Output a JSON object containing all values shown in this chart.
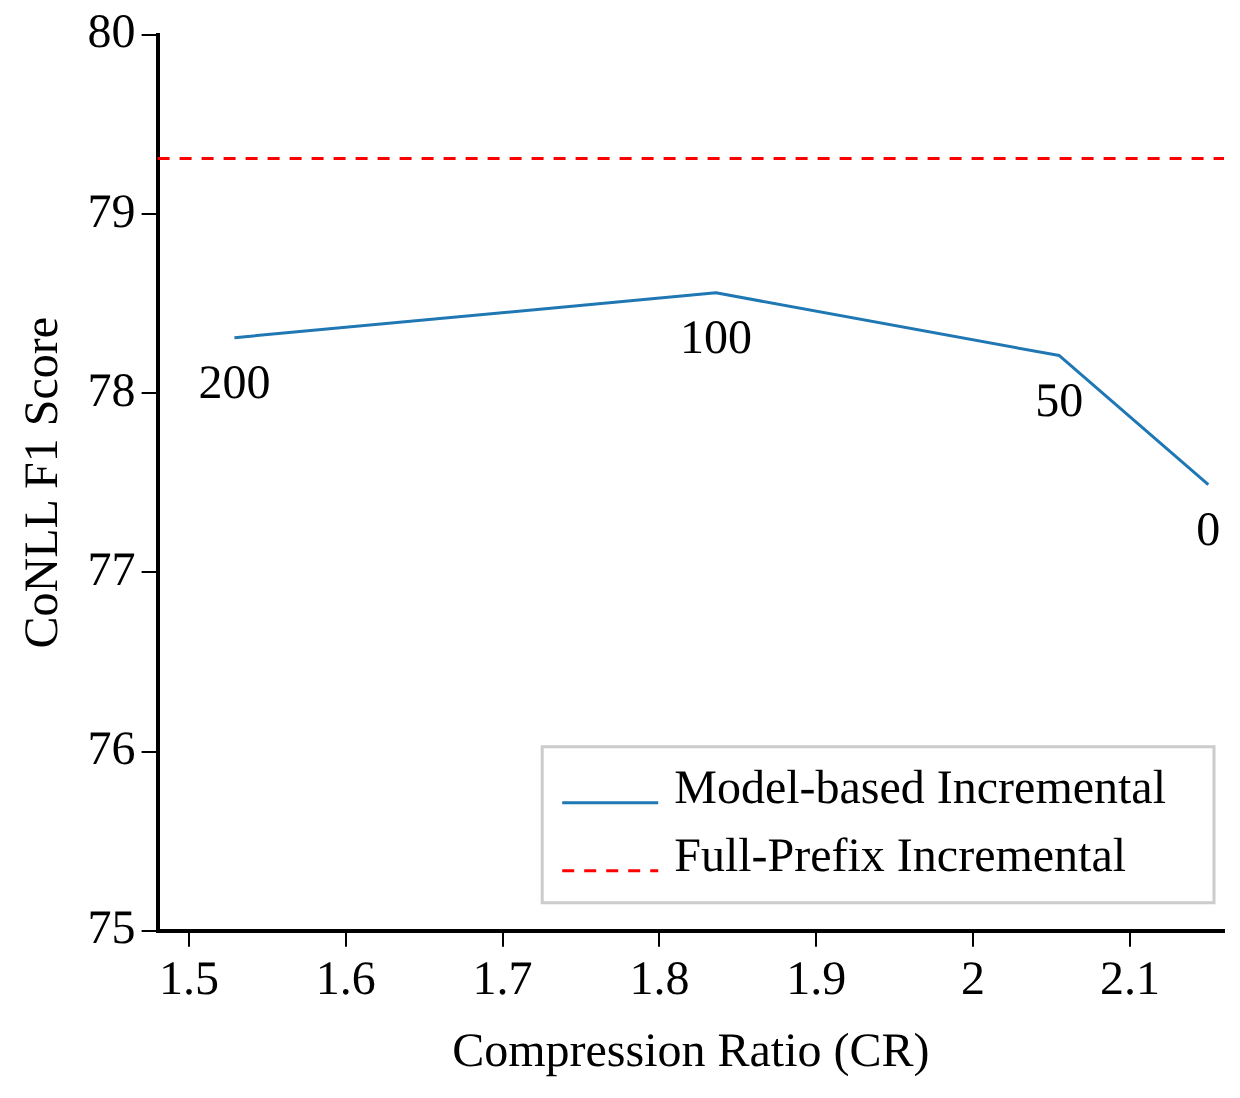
{
  "chart_data": {
    "type": "line",
    "xlabel": "Compression Ratio (CR)",
    "ylabel": "CoNLL F1 Score",
    "x": [
      1.529,
      1.836,
      2.055,
      2.15
    ],
    "series": [
      {
        "name": "Model-based Incremental",
        "color": "#1f77b4",
        "values": [
          78.31,
          78.56,
          78.21,
          77.49
        ]
      }
    ],
    "ref_lines": [
      {
        "axis": "y",
        "value": 79.31,
        "label": "Full-Prefix Incremental",
        "color": "#ff0000",
        "line_style": "dashed"
      }
    ],
    "annotations": [
      {
        "text": "200",
        "x": 1.529,
        "y": 78.31
      },
      {
        "text": "100",
        "x": 1.836,
        "y": 78.56
      },
      {
        "text": "50",
        "x": 2.055,
        "y": 78.21
      },
      {
        "text": "0",
        "x": 2.15,
        "y": 77.49
      }
    ],
    "xlim": [
      1.48,
      2.16
    ],
    "xticks": [
      1.5,
      1.6,
      1.7,
      1.8,
      1.9,
      2,
      2.1
    ],
    "ylim": [
      75,
      80
    ],
    "yticks": [
      75,
      76,
      77,
      78,
      79,
      80
    ],
    "grid": false,
    "legend": "bottom right",
    "marker": "none",
    "line_style": "solid"
  }
}
